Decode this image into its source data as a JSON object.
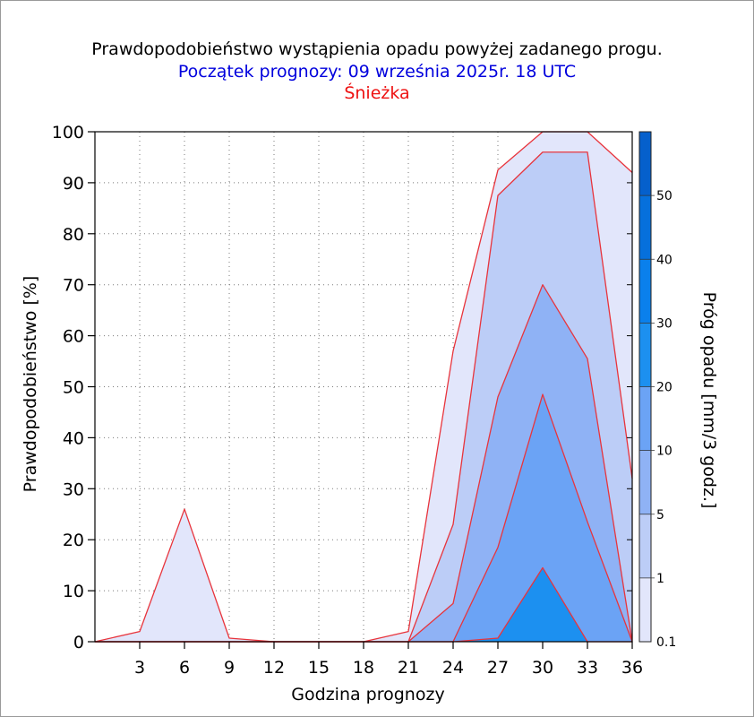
{
  "titles": {
    "line1": "Prawdopodobieństwo wystąpienia opadu powyżej zadanego progu.",
    "line2": "Początek prognozy: 09 września 2025r. 18 UTC",
    "line3": "Śnieżka"
  },
  "colors": {
    "line2": "#0000dd",
    "line3": "#ee1111",
    "boundary_line": "#e8343c",
    "levels": [
      "#e2e6fb",
      "#bccdf7",
      "#8fb2f5",
      "#6ba3f5",
      "#1c90f0",
      "#0a80ec",
      "#0670dc",
      "#0560cc",
      "#0450bc",
      "#033ea8"
    ]
  },
  "chart_data": {
    "type": "area",
    "xlabel": "Godzina prognozy",
    "ylabel": "Prawdopodobieństwo [%]",
    "xlim": [
      0,
      36
    ],
    "ylim": [
      0,
      100
    ],
    "xticks": [
      3,
      6,
      9,
      12,
      15,
      18,
      21,
      24,
      27,
      30,
      33,
      36
    ],
    "yticks": [
      0,
      10,
      20,
      30,
      40,
      50,
      60,
      70,
      80,
      90,
      100
    ],
    "x": [
      0,
      3,
      6,
      9,
      12,
      15,
      18,
      21,
      24,
      27,
      30,
      33,
      36
    ],
    "series": [
      {
        "name": "0.1",
        "values": [
          0,
          2,
          26,
          0.7,
          0,
          0,
          0,
          2,
          57,
          92.5,
          100,
          100,
          92
        ]
      },
      {
        "name": "1",
        "values": [
          0,
          0,
          0,
          0,
          0,
          0,
          0,
          0,
          23,
          87.5,
          96,
          96,
          32
        ]
      },
      {
        "name": "5",
        "values": [
          0,
          0,
          0,
          0,
          0,
          0,
          0,
          0,
          7.5,
          48,
          70,
          55.5,
          0
        ]
      },
      {
        "name": "10",
        "values": [
          0,
          0,
          0,
          0,
          0,
          0,
          0,
          0,
          0,
          18.5,
          48.5,
          23.5,
          0
        ]
      },
      {
        "name": "20",
        "values": [
          0,
          0,
          0,
          0,
          0,
          0,
          0,
          0,
          0,
          0.7,
          14.5,
          0,
          0
        ]
      }
    ],
    "colorbar": {
      "title": "Próg opadu [mm/3 godz.]",
      "labels": [
        "0.1",
        "1",
        "5",
        "10",
        "20",
        "30",
        "40",
        "50"
      ],
      "levels": [
        0.1,
        1,
        5,
        10,
        20,
        30,
        40,
        50
      ]
    },
    "grid": true
  }
}
